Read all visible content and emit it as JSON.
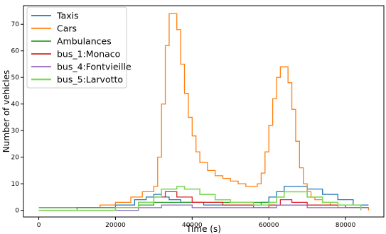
{
  "chart_data": {
    "type": "line",
    "xlabel": "Time (s)",
    "ylabel": "Number of vehicles",
    "xlim": [
      -4000,
      90000
    ],
    "ylim": [
      -2.5,
      77
    ],
    "xticks": [
      0,
      20000,
      40000,
      60000,
      80000
    ],
    "yticks": [
      0,
      10,
      20,
      30,
      40,
      50,
      60,
      70
    ],
    "grid": false,
    "legend_position": "top-left",
    "series": [
      {
        "name": "Taxis",
        "color": "#1f77b4",
        "step": true,
        "x": [
          0,
          10000,
          20000,
          25000,
          28000,
          30000,
          32000,
          34000,
          37000,
          40000,
          43000,
          48000,
          55000,
          58000,
          60000,
          62000,
          64000,
          66000,
          70000,
          74000,
          78000,
          82000,
          86000
        ],
        "y": [
          0,
          1,
          2,
          4,
          5,
          6,
          5,
          4,
          3,
          3,
          2,
          2,
          2,
          3,
          5,
          7,
          9,
          9,
          8,
          6,
          4,
          2,
          2
        ]
      },
      {
        "name": "Cars",
        "color": "#ff7f0e",
        "step": true,
        "x": [
          0,
          10000,
          16000,
          20000,
          24000,
          27000,
          30000,
          31000,
          32000,
          33000,
          34000,
          35000,
          36000,
          37000,
          38000,
          39000,
          40000,
          41000,
          42000,
          44000,
          46000,
          48000,
          50000,
          52000,
          54000,
          56000,
          57000,
          58000,
          59000,
          60000,
          61000,
          62000,
          63000,
          64000,
          65000,
          66000,
          67000,
          68000,
          69000,
          70000,
          71000,
          72000,
          74000,
          76000,
          78000,
          82000,
          86000
        ],
        "y": [
          0,
          1,
          2,
          3,
          5,
          7,
          9,
          20,
          40,
          62,
          74,
          74,
          68,
          55,
          44,
          35,
          28,
          22,
          18,
          15,
          13,
          12,
          11,
          10,
          9,
          9,
          10,
          14,
          22,
          32,
          42,
          50,
          54,
          54,
          48,
          38,
          26,
          16,
          10,
          7,
          5,
          4,
          3,
          2,
          1,
          1,
          0
        ]
      },
      {
        "name": "Ambulances",
        "color": "#2ca02c",
        "step": true,
        "x": [
          0,
          10000,
          26000,
          30000,
          34000,
          40000,
          48000,
          56000,
          60000,
          70000,
          80000,
          86000
        ],
        "y": [
          1,
          1,
          2,
          3,
          3,
          3,
          3,
          3,
          2,
          2,
          1,
          1
        ]
      },
      {
        "name": "bus_1:Monaco",
        "color": "#d62728",
        "step": true,
        "x": [
          0,
          20000,
          26000,
          30000,
          33000,
          36000,
          40000,
          48000,
          56000,
          60000,
          63000,
          66000,
          70000,
          80000,
          86000
        ],
        "y": [
          0,
          1,
          3,
          5,
          7,
          5,
          3,
          2,
          1,
          2,
          4,
          3,
          2,
          1,
          1
        ]
      },
      {
        "name": "bus_4:Fontvieille",
        "color": "#9467bd",
        "step": true,
        "x": [
          0,
          26000,
          32000,
          36000,
          40000,
          56000,
          62000,
          66000,
          70000,
          86000
        ],
        "y": [
          0,
          1,
          2,
          2,
          1,
          1,
          2,
          2,
          1,
          1
        ]
      },
      {
        "name": "bus_5:Larvotto",
        "color": "#7ed957",
        "step": true,
        "x": [
          0,
          20000,
          26000,
          30000,
          32000,
          34000,
          36000,
          38000,
          42000,
          46000,
          50000,
          56000,
          60000,
          62000,
          64000,
          66000,
          70000,
          74000,
          78000,
          84000
        ],
        "y": [
          0,
          1,
          3,
          5,
          8,
          8,
          9,
          8,
          6,
          4,
          3,
          2,
          3,
          5,
          7,
          7,
          5,
          3,
          2,
          0
        ]
      }
    ]
  }
}
